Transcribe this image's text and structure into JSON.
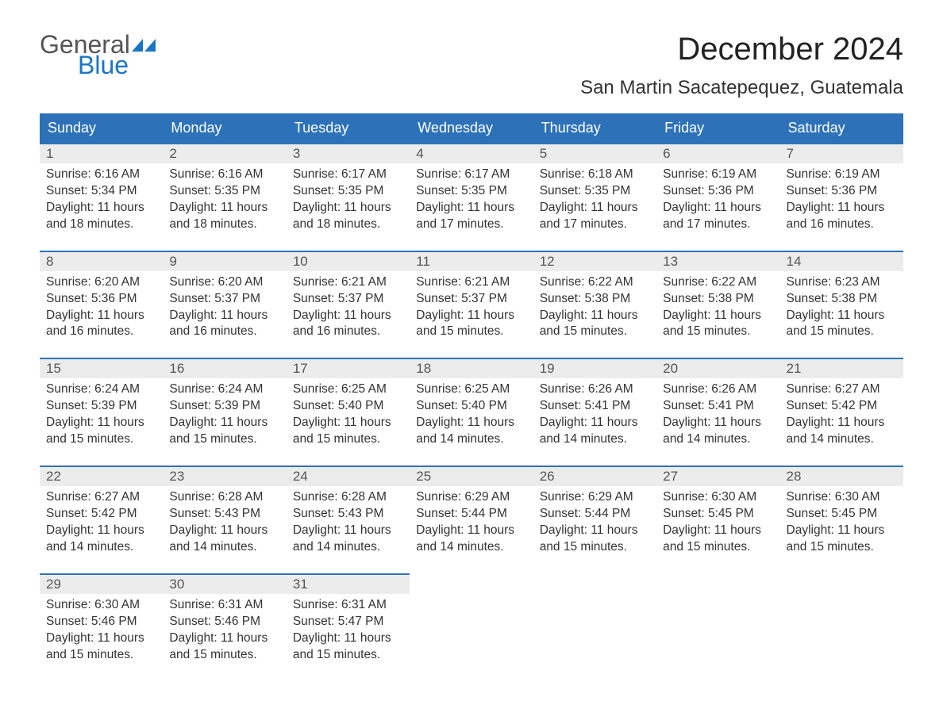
{
  "logo": {
    "word1": "General",
    "word2": "Blue",
    "color1": "#555555",
    "color2": "#1976c5"
  },
  "title": "December 2024",
  "location": "San Martin Sacatepequez, Guatemala",
  "colors": {
    "header_bg": "#2d72b8",
    "header_text": "#ffffff",
    "daynum_bg": "#ececec",
    "row_border": "#2d72b8",
    "text": "#333333"
  },
  "day_headers": [
    "Sunday",
    "Monday",
    "Tuesday",
    "Wednesday",
    "Thursday",
    "Friday",
    "Saturday"
  ],
  "weeks": [
    [
      {
        "n": "1",
        "sr": "6:16 AM",
        "ss": "5:34 PM",
        "dl": "11 hours and 18 minutes."
      },
      {
        "n": "2",
        "sr": "6:16 AM",
        "ss": "5:35 PM",
        "dl": "11 hours and 18 minutes."
      },
      {
        "n": "3",
        "sr": "6:17 AM",
        "ss": "5:35 PM",
        "dl": "11 hours and 18 minutes."
      },
      {
        "n": "4",
        "sr": "6:17 AM",
        "ss": "5:35 PM",
        "dl": "11 hours and 17 minutes."
      },
      {
        "n": "5",
        "sr": "6:18 AM",
        "ss": "5:35 PM",
        "dl": "11 hours and 17 minutes."
      },
      {
        "n": "6",
        "sr": "6:19 AM",
        "ss": "5:36 PM",
        "dl": "11 hours and 17 minutes."
      },
      {
        "n": "7",
        "sr": "6:19 AM",
        "ss": "5:36 PM",
        "dl": "11 hours and 16 minutes."
      }
    ],
    [
      {
        "n": "8",
        "sr": "6:20 AM",
        "ss": "5:36 PM",
        "dl": "11 hours and 16 minutes."
      },
      {
        "n": "9",
        "sr": "6:20 AM",
        "ss": "5:37 PM",
        "dl": "11 hours and 16 minutes."
      },
      {
        "n": "10",
        "sr": "6:21 AM",
        "ss": "5:37 PM",
        "dl": "11 hours and 16 minutes."
      },
      {
        "n": "11",
        "sr": "6:21 AM",
        "ss": "5:37 PM",
        "dl": "11 hours and 15 minutes."
      },
      {
        "n": "12",
        "sr": "6:22 AM",
        "ss": "5:38 PM",
        "dl": "11 hours and 15 minutes."
      },
      {
        "n": "13",
        "sr": "6:22 AM",
        "ss": "5:38 PM",
        "dl": "11 hours and 15 minutes."
      },
      {
        "n": "14",
        "sr": "6:23 AM",
        "ss": "5:38 PM",
        "dl": "11 hours and 15 minutes."
      }
    ],
    [
      {
        "n": "15",
        "sr": "6:24 AM",
        "ss": "5:39 PM",
        "dl": "11 hours and 15 minutes."
      },
      {
        "n": "16",
        "sr": "6:24 AM",
        "ss": "5:39 PM",
        "dl": "11 hours and 15 minutes."
      },
      {
        "n": "17",
        "sr": "6:25 AM",
        "ss": "5:40 PM",
        "dl": "11 hours and 15 minutes."
      },
      {
        "n": "18",
        "sr": "6:25 AM",
        "ss": "5:40 PM",
        "dl": "11 hours and 14 minutes."
      },
      {
        "n": "19",
        "sr": "6:26 AM",
        "ss": "5:41 PM",
        "dl": "11 hours and 14 minutes."
      },
      {
        "n": "20",
        "sr": "6:26 AM",
        "ss": "5:41 PM",
        "dl": "11 hours and 14 minutes."
      },
      {
        "n": "21",
        "sr": "6:27 AM",
        "ss": "5:42 PM",
        "dl": "11 hours and 14 minutes."
      }
    ],
    [
      {
        "n": "22",
        "sr": "6:27 AM",
        "ss": "5:42 PM",
        "dl": "11 hours and 14 minutes."
      },
      {
        "n": "23",
        "sr": "6:28 AM",
        "ss": "5:43 PM",
        "dl": "11 hours and 14 minutes."
      },
      {
        "n": "24",
        "sr": "6:28 AM",
        "ss": "5:43 PM",
        "dl": "11 hours and 14 minutes."
      },
      {
        "n": "25",
        "sr": "6:29 AM",
        "ss": "5:44 PM",
        "dl": "11 hours and 14 minutes."
      },
      {
        "n": "26",
        "sr": "6:29 AM",
        "ss": "5:44 PM",
        "dl": "11 hours and 15 minutes."
      },
      {
        "n": "27",
        "sr": "6:30 AM",
        "ss": "5:45 PM",
        "dl": "11 hours and 15 minutes."
      },
      {
        "n": "28",
        "sr": "6:30 AM",
        "ss": "5:45 PM",
        "dl": "11 hours and 15 minutes."
      }
    ],
    [
      {
        "n": "29",
        "sr": "6:30 AM",
        "ss": "5:46 PM",
        "dl": "11 hours and 15 minutes."
      },
      {
        "n": "30",
        "sr": "6:31 AM",
        "ss": "5:46 PM",
        "dl": "11 hours and 15 minutes."
      },
      {
        "n": "31",
        "sr": "6:31 AM",
        "ss": "5:47 PM",
        "dl": "11 hours and 15 minutes."
      },
      null,
      null,
      null,
      null
    ]
  ],
  "labels": {
    "sunrise": "Sunrise:",
    "sunset": "Sunset:",
    "daylight": "Daylight:"
  }
}
